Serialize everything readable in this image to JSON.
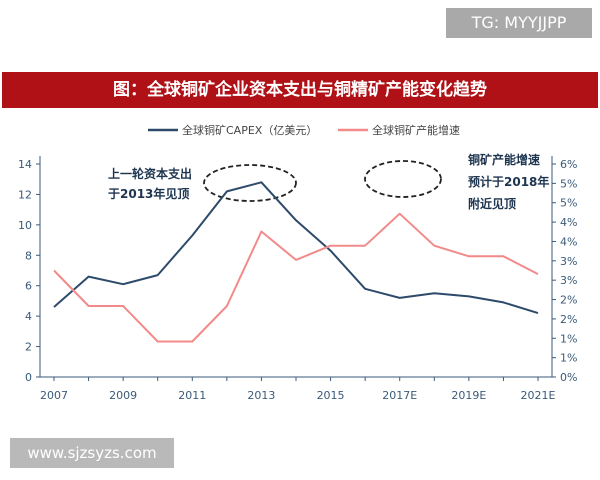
{
  "watermarks": {
    "top": "TG: MYYJJPP",
    "bottom": "www.sjzsyzs.com"
  },
  "colors": {
    "capex": "#2e4a6b",
    "growth": "#f28a8a",
    "title_bg": "#b01116",
    "axis": "#3a5a7a"
  },
  "chart_data": {
    "type": "line",
    "title": "图：全球铜矿企业资本支出与铜精矿产能变化趋势",
    "x": [
      "2007",
      "2008",
      "2009",
      "2010",
      "2011",
      "2012",
      "2013",
      "2014",
      "2015",
      "2016",
      "2017E",
      "2018E",
      "2019E",
      "2020E",
      "2021E"
    ],
    "x_tick_labels": [
      "2007",
      "2009",
      "2011",
      "2013",
      "2015",
      "2017E",
      "2019E",
      "2021E"
    ],
    "y_left": {
      "ylim": [
        0,
        14
      ],
      "ticks": [
        "0",
        "2",
        "4",
        "6",
        "8",
        "10",
        "12",
        "14"
      ]
    },
    "y_right": {
      "ylim": [
        0,
        6
      ],
      "ticks": [
        "0%",
        "1%",
        "1%",
        "2%",
        "2%",
        "3%",
        "3%",
        "4%",
        "4%",
        "5%",
        "5%",
        "6%"
      ]
    },
    "series": [
      {
        "name": "全球铜矿CAPEX（亿美元）",
        "axis": "left",
        "values": [
          4.6,
          6.6,
          6.1,
          6.7,
          9.3,
          12.2,
          12.8,
          10.3,
          8.3,
          5.8,
          5.2,
          5.5,
          5.3,
          4.9,
          4.2
        ]
      },
      {
        "name": "全球铜矿产能增速",
        "axis": "right",
        "values": [
          3.0,
          2.0,
          2.0,
          1.0,
          1.0,
          2.0,
          4.1,
          3.3,
          3.7,
          3.7,
          4.6,
          3.7,
          3.4,
          3.4,
          2.9
        ]
      }
    ],
    "legend_position": "top",
    "grid": false,
    "annotations": [
      {
        "lines": [
          "上一轮资本支出",
          "于2013年见顶"
        ]
      },
      {
        "lines": [
          "铜矿产能增速",
          "预计于2018年",
          "附近见顶"
        ]
      }
    ]
  }
}
